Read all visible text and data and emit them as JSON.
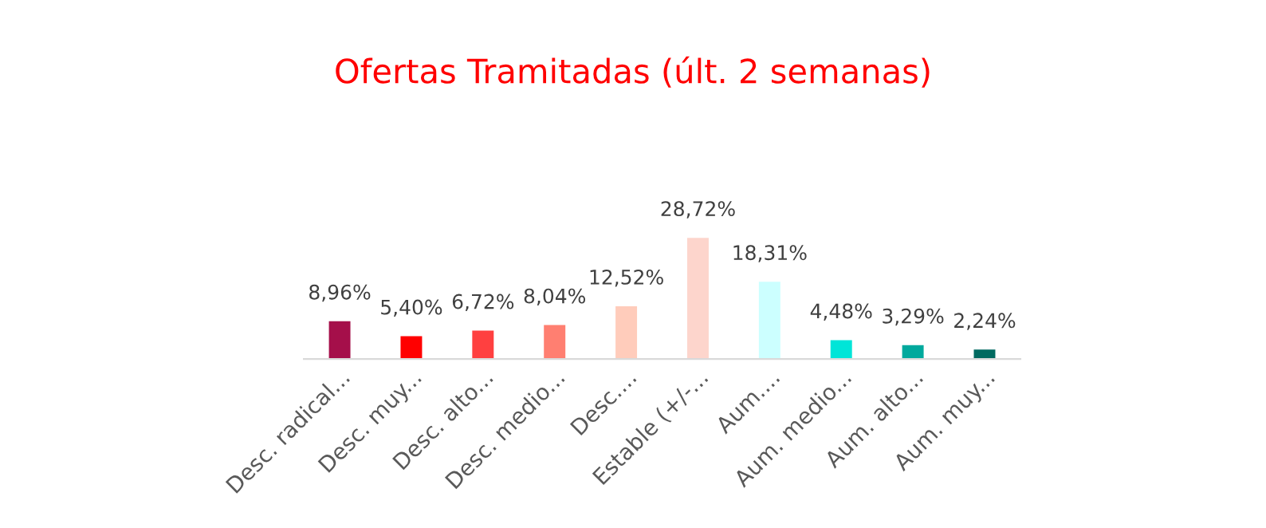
{
  "chart_data": {
    "type": "bar",
    "title": "Ofertas Tramitadas (últ. 2 semanas)",
    "categories": [
      "Desc. radical...",
      "Desc. muy...",
      "Desc. alto...",
      "Desc. medio...",
      "Desc....",
      "Estable (+/-...",
      "Aum....",
      "Aum. medio...",
      "Aum. alto...",
      "Aum. muy..."
    ],
    "values": [
      8.96,
      5.4,
      6.72,
      8.04,
      12.52,
      28.72,
      18.31,
      4.48,
      3.29,
      2.24
    ],
    "value_labels": [
      "8,96%",
      "5,40%",
      "6,72%",
      "8,04%",
      "12,52%",
      "28,72%",
      "18,31%",
      "4,48%",
      "3,29%",
      "2,24%"
    ],
    "colors": [
      "#a50f4a",
      "#ff0000",
      "#ff4040",
      "#ff7f71",
      "#ffccbb",
      "#fdd5cc",
      "#ccffff",
      "#00e5d8",
      "#00a99d",
      "#006a60"
    ],
    "grid": false,
    "legend": false
  }
}
